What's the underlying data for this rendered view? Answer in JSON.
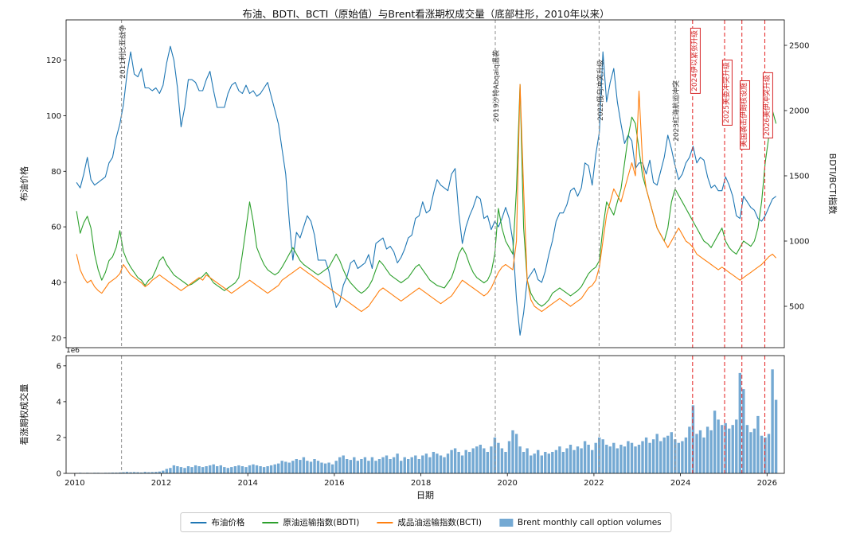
{
  "title": "布油、BDTI、BCTI（原始值）与Brent看涨期权成交量（底部柱形，2010年以来）",
  "axes": {
    "xlabel": "日期",
    "xticks": [
      2010,
      2012,
      2014,
      2016,
      2018,
      2020,
      2022,
      2024,
      2026
    ],
    "top": {
      "ylabel_left": "布油价格",
      "ylabel_right": "BDTI/BCTI指数",
      "yticks_left": [
        20,
        40,
        60,
        80,
        100,
        120
      ],
      "yticks_right": [
        500,
        1000,
        1500,
        2000,
        2500
      ]
    },
    "bottom": {
      "ylabel": "看涨期权成交量",
      "yticks": [
        0,
        2,
        4,
        6
      ],
      "offset_text": "1e6"
    }
  },
  "legend": {
    "items": [
      {
        "label": "布油价格",
        "type": "line",
        "color": "#1f77b4"
      },
      {
        "label": "原油运输指数(BDTI)",
        "type": "line",
        "color": "#2ca02c"
      },
      {
        "label": "成品油运输指数(BCTI)",
        "type": "line",
        "color": "#ff7f0e"
      },
      {
        "label": "Brent monthly call option volumes",
        "type": "patch",
        "color": "#74A9D3"
      }
    ]
  },
  "chart_data": [
    {
      "type": "line",
      "title": "布油、BDTI、BCTI（原始值）",
      "x_start": "2010-01",
      "x_frequency": "monthly",
      "xlim": [
        2009.8,
        2026.4
      ],
      "ylim_left": [
        16.5,
        134.5
      ],
      "ylim_right": [
        183,
        2695
      ],
      "series": [
        {
          "name": "布油价格",
          "axis": "left",
          "color": "#1f77b4",
          "values": [
            76,
            74,
            79,
            85,
            77,
            75,
            76,
            77,
            78,
            83,
            85,
            92,
            97,
            104,
            115,
            123,
            115,
            114,
            117,
            110,
            110,
            109,
            110,
            108,
            111,
            119,
            125,
            120,
            110,
            96,
            103,
            113,
            113,
            112,
            109,
            109,
            113,
            116,
            109,
            103,
            103,
            103,
            108,
            111,
            112,
            109,
            108,
            111,
            108,
            109,
            107,
            108,
            110,
            112,
            107,
            102,
            97,
            88,
            79,
            62,
            48,
            58,
            56,
            60,
            64,
            62,
            57,
            48,
            48,
            48,
            44,
            37,
            31,
            33,
            39,
            42,
            47,
            48,
            45,
            46,
            47,
            50,
            45,
            54,
            55,
            56,
            52,
            53,
            51,
            47,
            49,
            52,
            56,
            57,
            63,
            64,
            69,
            65,
            66,
            72,
            77,
            75,
            74,
            73,
            79,
            81,
            65,
            54,
            60,
            64,
            67,
            71,
            70,
            63,
            64,
            59,
            62,
            60,
            63,
            67,
            63,
            55,
            34,
            21,
            29,
            41,
            43,
            45,
            41,
            40,
            44,
            50,
            55,
            62,
            65,
            65,
            68,
            73,
            74,
            71,
            74,
            83,
            82,
            75,
            86,
            94,
            123,
            105,
            112,
            117,
            105,
            97,
            90,
            93,
            91,
            81,
            83,
            83,
            79,
            84,
            76,
            75,
            80,
            85,
            93,
            88,
            82,
            77,
            79,
            83,
            85,
            89,
            83,
            85,
            84,
            78,
            74,
            75,
            73,
            73,
            78,
            75,
            71,
            64,
            63,
            71,
            69,
            67,
            66,
            63,
            62,
            64,
            67,
            70,
            71
          ]
        },
        {
          "name": "原油运输指数(BDTI)",
          "axis": "right",
          "color": "#2ca02c",
          "values": [
            1230,
            1060,
            1140,
            1190,
            1100,
            900,
            780,
            700,
            760,
            850,
            880,
            950,
            1080,
            920,
            850,
            800,
            760,
            720,
            700,
            660,
            700,
            720,
            780,
            850,
            880,
            820,
            780,
            740,
            720,
            700,
            680,
            660,
            670,
            690,
            710,
            730,
            760,
            720,
            680,
            660,
            640,
            620,
            640,
            660,
            680,
            720,
            900,
            1100,
            1300,
            1150,
            950,
            880,
            820,
            780,
            760,
            740,
            760,
            800,
            850,
            900,
            950,
            900,
            850,
            820,
            800,
            780,
            760,
            740,
            760,
            780,
            800,
            850,
            900,
            850,
            780,
            720,
            680,
            650,
            620,
            600,
            620,
            650,
            700,
            780,
            850,
            820,
            780,
            740,
            720,
            700,
            680,
            700,
            720,
            760,
            800,
            820,
            780,
            740,
            700,
            680,
            660,
            650,
            640,
            680,
            720,
            800,
            900,
            950,
            900,
            820,
            760,
            720,
            700,
            680,
            700,
            760,
            900,
            1250,
            1100,
            1000,
            950,
            900,
            1400,
            2200,
            1100,
            700,
            600,
            550,
            520,
            500,
            520,
            550,
            600,
            620,
            640,
            620,
            600,
            580,
            600,
            620,
            650,
            700,
            750,
            780,
            800,
            850,
            1100,
            1300,
            1250,
            1200,
            1300,
            1400,
            1600,
            1800,
            1950,
            1900,
            1700,
            1500,
            1400,
            1300,
            1200,
            1100,
            1050,
            1000,
            1100,
            1300,
            1400,
            1350,
            1300,
            1250,
            1200,
            1150,
            1100,
            1050,
            1000,
            980,
            950,
            1000,
            1050,
            1100,
            1000,
            950,
            920,
            900,
            950,
            1000,
            980,
            960,
            1000,
            1100,
            1300,
            1600,
            1800,
            2000,
            1900
          ]
        },
        {
          "name": "成品油运输指数(BCTI)",
          "axis": "right",
          "color": "#ff7f0e",
          "values": [
            900,
            780,
            720,
            680,
            700,
            650,
            620,
            600,
            640,
            680,
            700,
            720,
            750,
            820,
            780,
            740,
            720,
            700,
            680,
            650,
            670,
            700,
            720,
            740,
            720,
            700,
            680,
            660,
            640,
            620,
            640,
            660,
            680,
            700,
            720,
            700,
            740,
            720,
            700,
            680,
            660,
            640,
            620,
            600,
            620,
            640,
            660,
            680,
            700,
            680,
            660,
            640,
            620,
            600,
            620,
            640,
            660,
            700,
            720,
            740,
            760,
            780,
            800,
            780,
            760,
            740,
            720,
            700,
            680,
            660,
            640,
            620,
            600,
            580,
            560,
            540,
            520,
            500,
            480,
            460,
            480,
            500,
            540,
            580,
            620,
            640,
            620,
            600,
            580,
            560,
            540,
            560,
            580,
            600,
            620,
            640,
            620,
            600,
            580,
            560,
            540,
            520,
            540,
            560,
            580,
            620,
            660,
            700,
            680,
            660,
            640,
            620,
            600,
            580,
            600,
            640,
            700,
            760,
            800,
            820,
            800,
            780,
            1000,
            2200,
            1400,
            700,
            550,
            500,
            480,
            460,
            480,
            500,
            520,
            540,
            560,
            540,
            520,
            500,
            520,
            540,
            560,
            600,
            640,
            660,
            700,
            800,
            1000,
            1200,
            1300,
            1400,
            1350,
            1300,
            1400,
            1500,
            1600,
            1500,
            2150,
            1600,
            1400,
            1300,
            1200,
            1100,
            1050,
            1000,
            950,
            1000,
            1050,
            1100,
            1050,
            1000,
            980,
            950,
            900,
            880,
            860,
            840,
            820,
            800,
            780,
            800,
            780,
            760,
            740,
            720,
            700,
            720,
            740,
            760,
            780,
            800,
            820,
            850,
            880,
            900,
            870
          ]
        }
      ],
      "annotations": [
        {
          "x": 2011.08,
          "label": "2011利比亚战争",
          "color": "gray",
          "dy": 6
        },
        {
          "x": 2019.72,
          "label": "2019沙特Abqaiq遇袭",
          "color": "gray",
          "dy": 38
        },
        {
          "x": 2022.12,
          "label": "2022俄乌冲突升级",
          "color": "gray",
          "dy": 50
        },
        {
          "x": 2023.88,
          "label": "2023红海航运冲突",
          "color": "gray",
          "dy": 76
        },
        {
          "x": 2024.28,
          "label": "2024伊以紧张升级",
          "color": "red",
          "dy": 10
        },
        {
          "x": 2025.02,
          "label": "2025美委冲突升级",
          "color": "red",
          "dy": 50
        },
        {
          "x": 2025.42,
          "label": "美国袭击伊朗核设施",
          "color": "red",
          "dy": 76
        },
        {
          "x": 2025.95,
          "label": "2026美伊冲突升级",
          "color": "red",
          "dy": 66
        }
      ]
    },
    {
      "type": "bar",
      "title": "Brent看涨期权成交量（月度）",
      "x_start": "2010-01",
      "x_frequency": "monthly",
      "xlim": [
        2009.8,
        2026.4
      ],
      "ylim_millions": [
        0,
        6.57
      ],
      "unit": "1e6 contracts",
      "series": [
        {
          "name": "Brent monthly call option volumes",
          "color": "#74A9D3",
          "values_millions": [
            0.02,
            0.03,
            0.02,
            0.03,
            0.02,
            0.03,
            0.03,
            0.02,
            0.03,
            0.03,
            0.04,
            0.04,
            0.05,
            0.06,
            0.08,
            0.06,
            0.07,
            0.06,
            0.05,
            0.08,
            0.06,
            0.07,
            0.08,
            0.1,
            0.15,
            0.25,
            0.3,
            0.45,
            0.4,
            0.35,
            0.3,
            0.4,
            0.35,
            0.45,
            0.4,
            0.35,
            0.4,
            0.45,
            0.5,
            0.4,
            0.45,
            0.35,
            0.3,
            0.35,
            0.4,
            0.45,
            0.4,
            0.35,
            0.45,
            0.5,
            0.45,
            0.4,
            0.35,
            0.4,
            0.45,
            0.5,
            0.55,
            0.7,
            0.65,
            0.6,
            0.7,
            0.8,
            0.75,
            0.9,
            0.7,
            0.65,
            0.8,
            0.7,
            0.6,
            0.55,
            0.6,
            0.5,
            0.7,
            0.9,
            1.0,
            0.8,
            0.75,
            0.9,
            0.7,
            0.8,
            0.9,
            0.7,
            0.9,
            0.7,
            0.8,
            0.9,
            1.0,
            0.8,
            0.9,
            1.1,
            0.7,
            0.9,
            0.8,
            0.9,
            1.0,
            0.8,
            1.0,
            1.1,
            0.9,
            1.2,
            1.1,
            1.0,
            0.9,
            1.1,
            1.3,
            1.4,
            1.2,
            1.0,
            1.3,
            1.2,
            1.4,
            1.5,
            1.6,
            1.4,
            1.2,
            1.5,
            2.0,
            1.7,
            1.4,
            1.2,
            1.8,
            2.4,
            2.2,
            1.5,
            1.2,
            1.4,
            1.0,
            1.1,
            1.3,
            1.0,
            1.2,
            1.1,
            1.2,
            1.3,
            1.5,
            1.2,
            1.4,
            1.6,
            1.3,
            1.5,
            1.4,
            1.8,
            1.6,
            1.3,
            1.7,
            2.0,
            1.9,
            1.6,
            1.5,
            1.7,
            1.4,
            1.6,
            1.5,
            1.8,
            1.7,
            1.5,
            1.6,
            1.8,
            2.0,
            1.7,
            1.9,
            2.2,
            1.8,
            2.0,
            2.1,
            2.3,
            1.9,
            1.7,
            1.8,
            2.0,
            2.6,
            3.8,
            2.2,
            2.4,
            2.0,
            2.6,
            2.4,
            3.5,
            3.0,
            2.7,
            2.8,
            2.5,
            2.7,
            3.0,
            5.6,
            4.7,
            2.7,
            2.3,
            2.5,
            3.2,
            2.1,
            2.0,
            2.2,
            5.8,
            4.1
          ]
        }
      ]
    }
  ],
  "colors": {
    "brent_line": "#1f77b4",
    "bdti_line": "#2ca02c",
    "bcti_line": "#ff7f0e",
    "volume_bar": "#74A9D3",
    "event_line_gray": "#999999",
    "event_line_red": "#e53333",
    "spine": "#000000"
  }
}
